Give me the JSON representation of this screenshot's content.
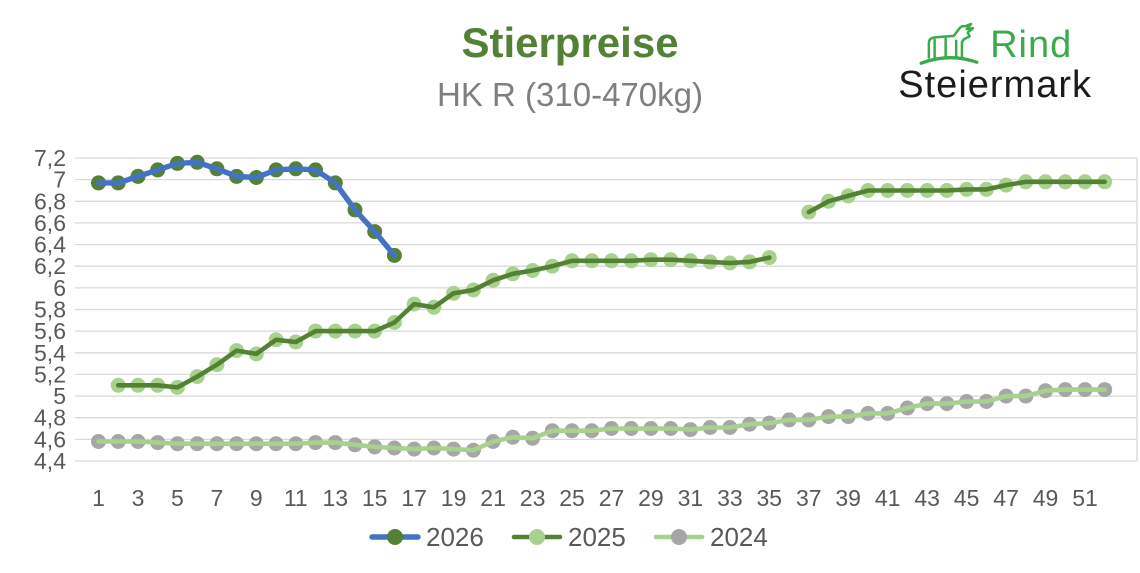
{
  "header": {
    "title": "Stierpreise",
    "subtitle": "HK R (310-470kg)"
  },
  "logo": {
    "icon": "cattle-icon",
    "brand_line1": "Rind",
    "brand_line2": "Steiermark"
  },
  "colors": {
    "title_green": "#538135",
    "subtitle_gray": "#7f7f7f",
    "logo_green": "#3aab4a",
    "logo_black": "#1b1b1b",
    "axis_gray": "#595959",
    "gridline": "#d9d9d9",
    "blue_2026": "#4472c4",
    "dark_green": "#548235",
    "light_green": "#a9d18e",
    "gray_2024": "#a6a6a6"
  },
  "chart_data": {
    "type": "line",
    "title": "Stierpreise",
    "subtitle": "HK R (310-470kg)",
    "grid": true,
    "legend_position": "bottom",
    "x_axis": {
      "range": [
        1,
        52
      ],
      "ticks": [
        1,
        3,
        5,
        7,
        9,
        11,
        13,
        15,
        17,
        19,
        21,
        23,
        25,
        27,
        29,
        31,
        33,
        35,
        37,
        39,
        41,
        43,
        45,
        47,
        49,
        51
      ]
    },
    "y_axis": {
      "min": 4.4,
      "max": 7.2,
      "step": 0.2,
      "tick_labels": [
        "4,4",
        "4,6",
        "4,8",
        "5",
        "5,2",
        "5,4",
        "5,6",
        "5,8",
        "6",
        "6,2",
        "6,4",
        "6,6",
        "6,8",
        "7",
        "7,2"
      ]
    },
    "series": [
      {
        "name": "2026",
        "line_color": "#4472c4",
        "marker_color": "#548235",
        "values": [
          6.97,
          6.97,
          7.03,
          7.09,
          7.15,
          7.16,
          7.1,
          7.03,
          7.02,
          7.09,
          7.1,
          7.09,
          6.97,
          6.72,
          6.52,
          6.3
        ]
      },
      {
        "name": "2025",
        "line_color": "#548235",
        "marker_color": "#a9d18e",
        "values": [
          null,
          5.1,
          5.1,
          5.1,
          5.08,
          5.18,
          5.29,
          5.42,
          5.39,
          5.52,
          5.5,
          5.6,
          5.6,
          5.6,
          5.6,
          5.68,
          5.85,
          5.82,
          5.95,
          5.98,
          6.07,
          6.13,
          6.16,
          6.2,
          6.25,
          6.25,
          6.25,
          6.25,
          6.26,
          6.26,
          6.25,
          6.24,
          6.23,
          6.24,
          6.28,
          null,
          6.7,
          6.8,
          6.85,
          6.9,
          6.9,
          6.9,
          6.9,
          6.9,
          6.91,
          6.91,
          6.95,
          6.98,
          6.98,
          6.98,
          6.98,
          6.98
        ]
      },
      {
        "name": "2024",
        "line_color": "#a9d18e",
        "marker_color": "#a6a6a6",
        "values": [
          4.58,
          4.58,
          4.58,
          4.57,
          4.56,
          4.56,
          4.56,
          4.56,
          4.56,
          4.56,
          4.56,
          4.57,
          4.57,
          4.55,
          4.53,
          4.52,
          4.51,
          4.52,
          4.51,
          4.5,
          4.58,
          4.62,
          4.61,
          4.68,
          4.68,
          4.68,
          4.7,
          4.7,
          4.7,
          4.7,
          4.69,
          4.71,
          4.71,
          4.74,
          4.75,
          4.78,
          4.78,
          4.81,
          4.81,
          4.84,
          4.84,
          4.89,
          4.93,
          4.93,
          4.95,
          4.95,
          5.0,
          5.0,
          5.05,
          5.06,
          5.06,
          5.06
        ]
      }
    ]
  }
}
